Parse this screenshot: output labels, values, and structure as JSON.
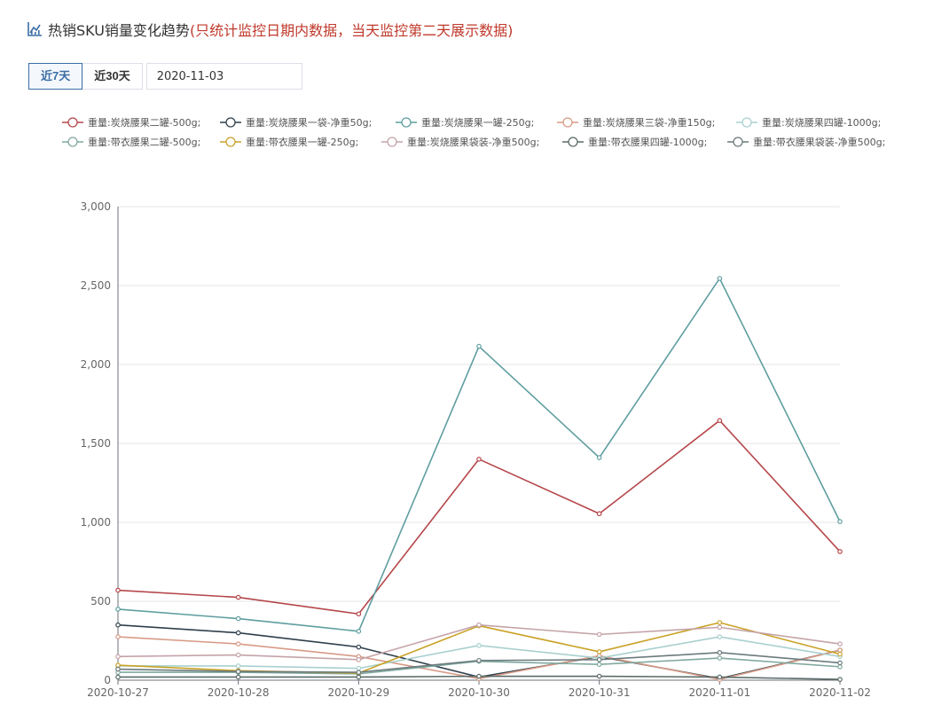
{
  "header": {
    "icon": "line-chart-icon",
    "title": "热销SKU销量变化趋势",
    "note": "(只统计监控日期内数据，当天监控第二天展示数据)"
  },
  "controls": {
    "range_7": "近7天",
    "range_30": "近30天",
    "active_range": "近7天",
    "date_value": "2020-11-03"
  },
  "chart_data": {
    "type": "line",
    "title": "",
    "xlabel": "",
    "ylabel": "",
    "ylim": [
      0,
      3000
    ],
    "yticks": [
      0,
      500,
      1000,
      1500,
      2000,
      2500,
      3000
    ],
    "ytick_labels": [
      "0",
      "500",
      "1,000",
      "1,500",
      "2,000",
      "2,500",
      "3,000"
    ],
    "grid": true,
    "legend_position": "top",
    "categories": [
      "2020-10-27",
      "2020-10-28",
      "2020-10-29",
      "2020-10-30",
      "2020-10-31",
      "2020-11-01",
      "2020-11-02"
    ],
    "series": [
      {
        "name": "重量:炭烧腰果二罐-500g;",
        "color": "#b5474b",
        "values": [
          570,
          525,
          420,
          1400,
          1055,
          1645,
          815
        ]
      },
      {
        "name": "重量:炭烧腰果一袋-净重50g;",
        "color": "#2f3f4a",
        "values": [
          350,
          300,
          210,
          20,
          150,
          10,
          190
        ]
      },
      {
        "name": "重量:炭烧腰果一罐-250g;",
        "color": "#5f9ea0",
        "values": [
          450,
          390,
          310,
          2115,
          1410,
          2545,
          1005
        ]
      },
      {
        "name": "重量:炭烧腰果三袋-净重150g;",
        "color": "#d79a86",
        "values": [
          275,
          230,
          150,
          10,
          155,
          5,
          190
        ]
      },
      {
        "name": "重量:炭烧腰果四罐-1000g;",
        "color": "#a8d0cf",
        "values": [
          90,
          90,
          75,
          220,
          140,
          275,
          150
        ]
      },
      {
        "name": "重量:带衣腰果二罐-500g;",
        "color": "#7fa89f",
        "values": [
          50,
          50,
          40,
          120,
          100,
          140,
          85
        ]
      },
      {
        "name": "重量:带衣腰果一罐-250g;",
        "color": "#c9a227",
        "values": [
          95,
          60,
          45,
          345,
          180,
          365,
          165
        ]
      },
      {
        "name": "重量:炭烧腰果袋装-净重500g;",
        "color": "#c4a3a8",
        "values": [
          150,
          160,
          130,
          350,
          290,
          335,
          230
        ]
      },
      {
        "name": "重量:带衣腰果四罐-1000g;",
        "color": "#5a6b68",
        "values": [
          20,
          20,
          20,
          25,
          25,
          20,
          5
        ]
      },
      {
        "name": "重量:带衣腰果袋装-净重500g;",
        "color": "#6c7a7c",
        "values": [
          70,
          55,
          50,
          125,
          130,
          175,
          110
        ]
      }
    ]
  }
}
